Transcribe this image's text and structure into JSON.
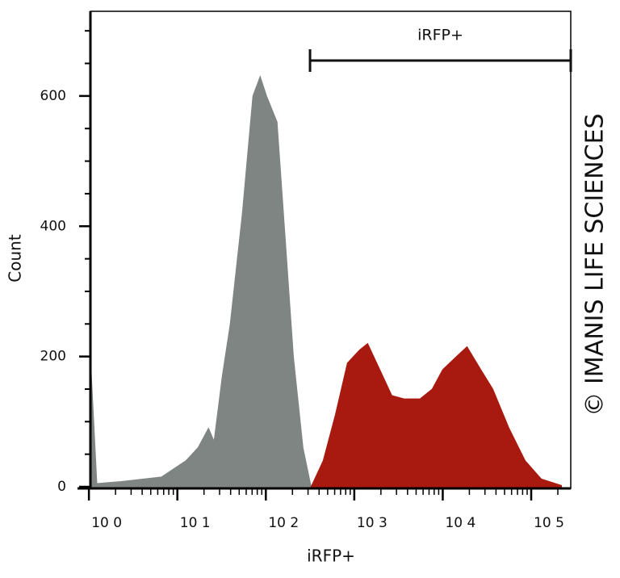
{
  "chart_data": {
    "type": "histogram",
    "x_label": "iRFP+",
    "y_label": "Count",
    "watermark": "© IMANIS LIFE SCIENCES",
    "x_log": true,
    "xlim": [
      1.04,
      280000
    ],
    "xticks": [
      {
        "value": 1,
        "label": "10 0"
      },
      {
        "value": 10,
        "label": "10 1"
      },
      {
        "value": 100,
        "label": "10 2"
      },
      {
        "value": 1000,
        "label": "10 3"
      },
      {
        "value": 10000,
        "label": "10 4"
      },
      {
        "value": 100000,
        "label": "10 5"
      }
    ],
    "x_minor_ticks": [
      2,
      3,
      4,
      5,
      6,
      7,
      8,
      9,
      20,
      30,
      40,
      50,
      60,
      70,
      80,
      90,
      200,
      300,
      400,
      500,
      600,
      700,
      800,
      900,
      2000,
      3000,
      4000,
      5000,
      6000,
      7000,
      8000,
      9000,
      20000,
      30000,
      40000,
      50000,
      60000,
      70000,
      80000,
      90000,
      200000
    ],
    "ylim": [
      0,
      730
    ],
    "yticks": [
      0,
      200,
      400,
      600
    ],
    "y_minor_ticks": [
      50,
      100,
      150,
      250,
      300,
      350,
      450,
      500,
      550,
      650,
      700
    ],
    "gate": {
      "label": "iRFP+",
      "range": [
        316,
        280000
      ]
    },
    "series": [
      {
        "color": "#7f8583",
        "x": [
          1.04,
          1.23,
          2.32,
          6.6,
          12.5,
          17.1,
          22.5,
          26.0,
          32.2,
          39.6,
          54.3,
          71.4,
          86.3,
          102,
          134,
          162,
          205,
          263,
          325
        ],
        "values": [
          200,
          5,
          8,
          15,
          40,
          60,
          90,
          70,
          170,
          250,
          420,
          600,
          630,
          600,
          560,
          400,
          200,
          60,
          0
        ]
      },
      {
        "color": "#a81a0f",
        "x": [
          325,
          445,
          610,
          836,
          1146,
          1416,
          1940,
          2660,
          3650,
          5550,
          7600,
          10000,
          14300,
          18800,
          26900,
          36800,
          56100,
          85500,
          130000,
          220000
        ],
        "values": [
          0,
          40,
          110,
          190,
          210,
          220,
          180,
          140,
          135,
          135,
          150,
          180,
          200,
          215,
          180,
          150,
          90,
          40,
          12,
          2
        ]
      }
    ]
  }
}
